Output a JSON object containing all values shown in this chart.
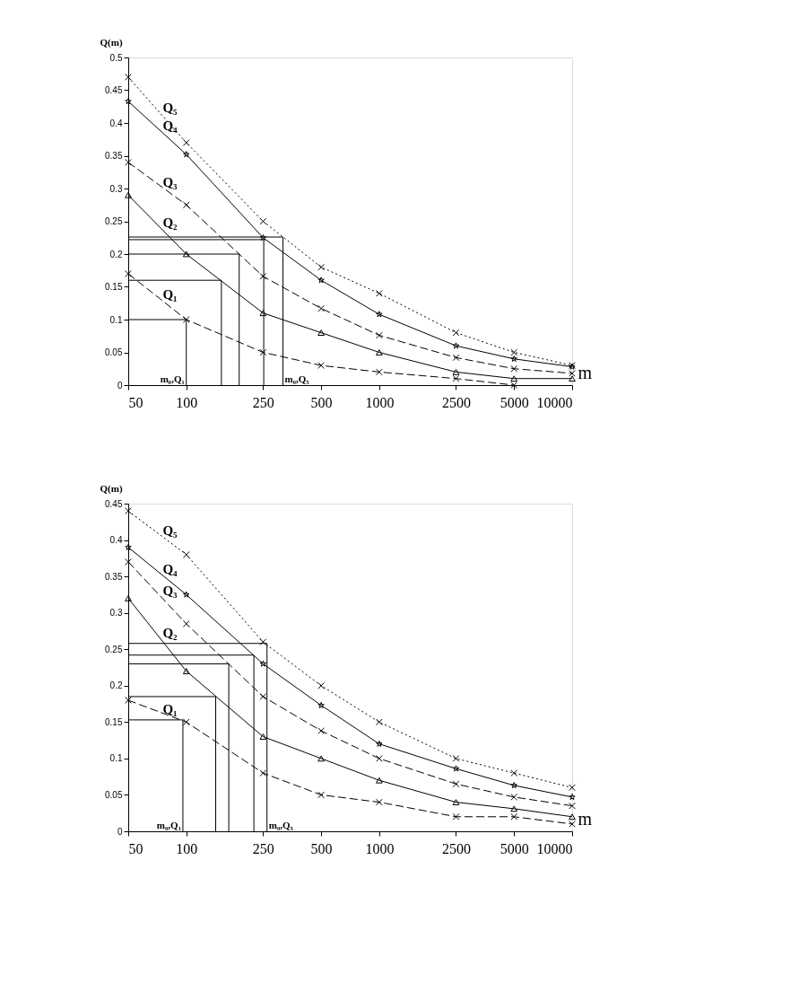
{
  "chart_data": [
    {
      "type": "line",
      "xlabel": "m",
      "ylabel": "Q(m)",
      "x": [
        50,
        100,
        250,
        500,
        1000,
        2500,
        5000,
        10000
      ],
      "xlim": [
        50,
        10000
      ],
      "xticks": [
        50,
        100,
        250,
        500,
        1000,
        2500,
        5000,
        10000
      ],
      "ylim": [
        0,
        0.5
      ],
      "yticks": [
        0,
        0.05,
        0.1,
        0.15,
        0.2,
        0.25,
        0.3,
        0.35,
        0.4,
        0.45,
        0.5
      ],
      "grid": false,
      "legend": false,
      "log": "x",
      "annotations": [
        {
          "text": "m₀,Q₁",
          "x": 100,
          "y": 0
        },
        {
          "text": "m₀,Q₅",
          "x": 317,
          "y": 0
        }
      ],
      "series": [
        {
          "name": "Q₅",
          "color": "#000000",
          "marker": "cross",
          "line_style": "dotted",
          "values": [
            0.47,
            0.37,
            0.25,
            0.18,
            0.14,
            0.08,
            0.05,
            0.03
          ]
        },
        {
          "name": "Q₄",
          "color": "#000000",
          "marker": "star",
          "line_style": "solid",
          "values": [
            0.433,
            0.352,
            0.225,
            0.16,
            0.108,
            0.06,
            0.04,
            0.028
          ]
        },
        {
          "name": "Q₃",
          "color": "#000000",
          "marker": "cross",
          "line_style": "dashed",
          "values": [
            0.34,
            0.275,
            0.166,
            0.117,
            0.076,
            0.042,
            0.025,
            0.018
          ]
        },
        {
          "name": "Q₂",
          "color": "#000000",
          "marker": "triangle",
          "line_style": "solid",
          "values": [
            0.29,
            0.2,
            0.11,
            0.08,
            0.05,
            0.02,
            0.01,
            0.01
          ]
        },
        {
          "name": "Q₁",
          "color": "#000000",
          "marker": "cross",
          "line_style": "dashed",
          "values": [
            0.17,
            0.1,
            0.05,
            0.03,
            0.02,
            0.01,
            0.0,
            null
          ]
        },
        {
          "color": "#000000",
          "marker": "none",
          "line_style": "solid",
          "x": [
            50,
            100,
            100
          ],
          "values": [
            0.1,
            0.1,
            0
          ]
        },
        {
          "color": "#000000",
          "marker": "none",
          "line_style": "solid",
          "x": [
            50,
            152,
            152
          ],
          "values": [
            0.16,
            0.16,
            0
          ]
        },
        {
          "color": "#000000",
          "marker": "none",
          "line_style": "solid",
          "x": [
            50,
            188,
            188
          ],
          "values": [
            0.2,
            0.2,
            0
          ]
        },
        {
          "color": "#000000",
          "marker": "none",
          "line_style": "solid",
          "x": [
            50,
            252,
            252
          ],
          "values": [
            0.222,
            0.222,
            0
          ]
        },
        {
          "color": "#000000",
          "marker": "none",
          "line_style": "solid",
          "x": [
            50,
            317,
            317
          ],
          "values": [
            0.226,
            0.226,
            0
          ]
        }
      ]
    },
    {
      "type": "line",
      "xlabel": "m",
      "ylabel": "Q(m)",
      "x": [
        50,
        100,
        250,
        500,
        1000,
        2500,
        5000,
        10000
      ],
      "xlim": [
        50,
        10000
      ],
      "xticks": [
        50,
        100,
        250,
        500,
        1000,
        2500,
        5000,
        10000
      ],
      "ylim": [
        0,
        0.45
      ],
      "yticks": [
        0,
        0.05,
        0.1,
        0.15,
        0.2,
        0.25,
        0.3,
        0.35,
        0.4,
        0.45
      ],
      "grid": false,
      "legend": false,
      "log": "x",
      "annotations": [
        {
          "text": "m₀,Q₁",
          "x": 96,
          "y": 0
        },
        {
          "text": "m₀,Q₅",
          "x": 262,
          "y": 0
        }
      ],
      "series": [
        {
          "name": "Q₅",
          "color": "#000000",
          "marker": "cross",
          "line_style": "dotted",
          "values": [
            0.44,
            0.38,
            0.26,
            0.2,
            0.15,
            0.1,
            0.08,
            0.06
          ]
        },
        {
          "name": "Q₄",
          "color": "#000000",
          "marker": "star",
          "line_style": "solid",
          "values": [
            0.39,
            0.325,
            0.23,
            0.173,
            0.12,
            0.086,
            0.063,
            0.047
          ]
        },
        {
          "name": "Q₃",
          "color": "#000000",
          "marker": "cross",
          "line_style": "dashed",
          "values": [
            0.37,
            0.285,
            0.185,
            0.138,
            0.1,
            0.065,
            0.047,
            0.035
          ]
        },
        {
          "name": "Q₂",
          "color": "#000000",
          "marker": "triangle",
          "line_style": "solid",
          "values": [
            0.32,
            0.22,
            0.13,
            0.1,
            0.07,
            0.04,
            0.031,
            0.02
          ]
        },
        {
          "name": "Q₁",
          "color": "#000000",
          "marker": "cross",
          "line_style": "dashed",
          "values": [
            0.18,
            0.15,
            0.08,
            0.05,
            0.04,
            0.02,
            0.02,
            0.01
          ]
        },
        {
          "color": "#000000",
          "marker": "none",
          "line_style": "solid",
          "x": [
            50,
            96,
            96
          ],
          "values": [
            0.153,
            0.153,
            0
          ]
        },
        {
          "color": "#000000",
          "marker": "none",
          "line_style": "solid",
          "x": [
            50,
            142,
            142
          ],
          "values": [
            0.185,
            0.185,
            0
          ]
        },
        {
          "color": "#000000",
          "marker": "none",
          "line_style": "solid",
          "x": [
            50,
            166,
            166
          ],
          "values": [
            0.23,
            0.23,
            0
          ]
        },
        {
          "color": "#000000",
          "marker": "none",
          "line_style": "solid",
          "x": [
            50,
            224,
            224
          ],
          "values": [
            0.242,
            0.242,
            0
          ]
        },
        {
          "color": "#000000",
          "marker": "none",
          "line_style": "solid",
          "x": [
            50,
            262,
            262
          ],
          "values": [
            0.258,
            0.258,
            0
          ]
        }
      ]
    }
  ]
}
